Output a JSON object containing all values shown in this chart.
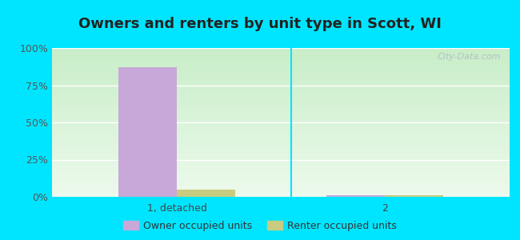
{
  "title": "Owners and renters by unit type in Scott, WI",
  "categories": [
    "1, detached",
    "2"
  ],
  "owner_values": [
    87,
    1
  ],
  "renter_values": [
    5,
    1
  ],
  "owner_color": "#c8a8d8",
  "renter_color": "#c8cc80",
  "bg_top_color": "#c8eec8",
  "bg_bottom_color": "#edfaed",
  "outer_bg": "#00e5ff",
  "ylim": [
    0,
    100
  ],
  "yticks": [
    0,
    25,
    50,
    75,
    100
  ],
  "ytick_labels": [
    "0%",
    "25%",
    "50%",
    "75%",
    "100%"
  ],
  "bar_width": 0.28,
  "legend_labels": [
    "Owner occupied units",
    "Renter occupied units"
  ],
  "watermark": "City-Data.com",
  "title_fontsize": 13,
  "tick_fontsize": 9,
  "legend_fontsize": 9
}
